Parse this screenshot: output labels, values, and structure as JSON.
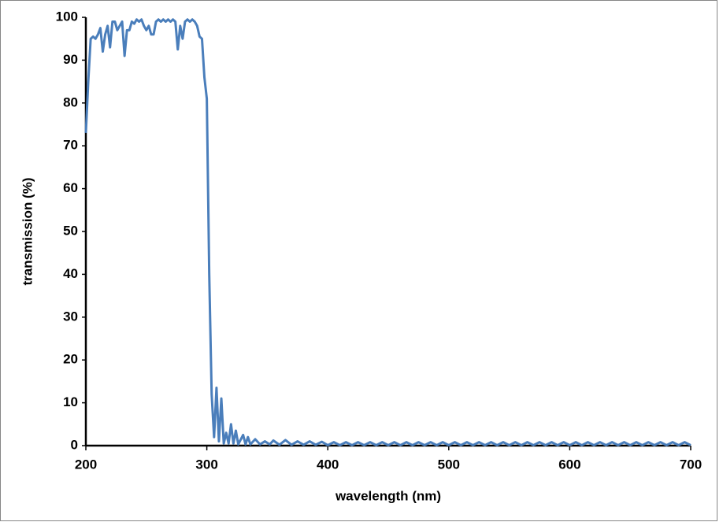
{
  "chart_data": {
    "type": "line",
    "xlabel": "wavelength (nm)",
    "ylabel": "transmission (%)",
    "color": "#4a7ebb",
    "xlim": [
      200,
      700
    ],
    "xticks": [
      200,
      300,
      400,
      500,
      600,
      700
    ],
    "ylim": [
      0,
      100
    ],
    "yticks": [
      0,
      10,
      20,
      30,
      40,
      50,
      60,
      70,
      80,
      90,
      100
    ],
    "grid": false,
    "x": [
      200,
      202,
      204,
      206,
      208,
      210,
      212,
      214,
      216,
      218,
      220,
      222,
      224,
      226,
      228,
      230,
      232,
      234,
      236,
      238,
      240,
      242,
      244,
      246,
      248,
      250,
      252,
      254,
      256,
      258,
      260,
      262,
      264,
      266,
      268,
      270,
      272,
      274,
      276,
      278,
      280,
      282,
      284,
      286,
      288,
      290,
      292,
      294,
      296,
      298,
      300,
      302,
      304,
      306,
      308,
      310,
      312,
      314,
      316,
      318,
      320,
      322,
      324,
      326,
      330,
      332,
      334,
      336,
      340,
      344,
      348,
      352,
      355,
      360,
      365,
      370,
      375,
      380,
      385,
      390,
      395,
      400,
      405,
      410,
      415,
      420,
      425,
      430,
      435,
      440,
      445,
      450,
      455,
      460,
      465,
      470,
      475,
      480,
      485,
      490,
      495,
      500,
      505,
      510,
      515,
      520,
      525,
      530,
      535,
      540,
      545,
      550,
      555,
      560,
      565,
      570,
      575,
      580,
      585,
      590,
      595,
      600,
      605,
      610,
      615,
      620,
      625,
      630,
      635,
      640,
      645,
      650,
      655,
      660,
      665,
      670,
      675,
      680,
      685,
      690,
      695,
      700
    ],
    "values": [
      73,
      85,
      95,
      95.5,
      95,
      96,
      97.5,
      92,
      96,
      98,
      93,
      99,
      99,
      97,
      98,
      99,
      91,
      97,
      97,
      99,
      98.5,
      99.5,
      99,
      99.5,
      98,
      97,
      98,
      96,
      96,
      99,
      99.5,
      99,
      99.5,
      99,
      99.5,
      99,
      99.5,
      99,
      92.5,
      98,
      95,
      99,
      99.5,
      99,
      99.5,
      99,
      98,
      95.5,
      95,
      86,
      81,
      40,
      12,
      2,
      13.5,
      1,
      11,
      0.5,
      3,
      0.5,
      5,
      0.5,
      3.5,
      0.3,
      2.5,
      0.3,
      2,
      0.3,
      1.5,
      0.3,
      1,
      0.3,
      1.2,
      0.2,
      1.3,
      0.2,
      1.0,
      0.2,
      1.0,
      0.2,
      0.9,
      0.1,
      0.8,
      0.1,
      0.8,
      0.1,
      0.8,
      0.1,
      0.8,
      0.1,
      0.8,
      0.1,
      0.8,
      0.1,
      0.8,
      0.1,
      0.8,
      0.1,
      0.8,
      0.1,
      0.8,
      0.1,
      0.8,
      0.1,
      0.8,
      0.1,
      0.8,
      0.1,
      0.8,
      0.1,
      0.8,
      0.1,
      0.8,
      0.1,
      0.8,
      0.1,
      0.8,
      0.1,
      0.8,
      0.1,
      0.8,
      0.1,
      0.8,
      0.1,
      0.8,
      0.1,
      0.8,
      0.1,
      0.8,
      0.1,
      0.8,
      0.1,
      0.8,
      0.1,
      0.8,
      0.1,
      0.8,
      0.1,
      0.8,
      0.1,
      0.8,
      0.1
    ]
  }
}
